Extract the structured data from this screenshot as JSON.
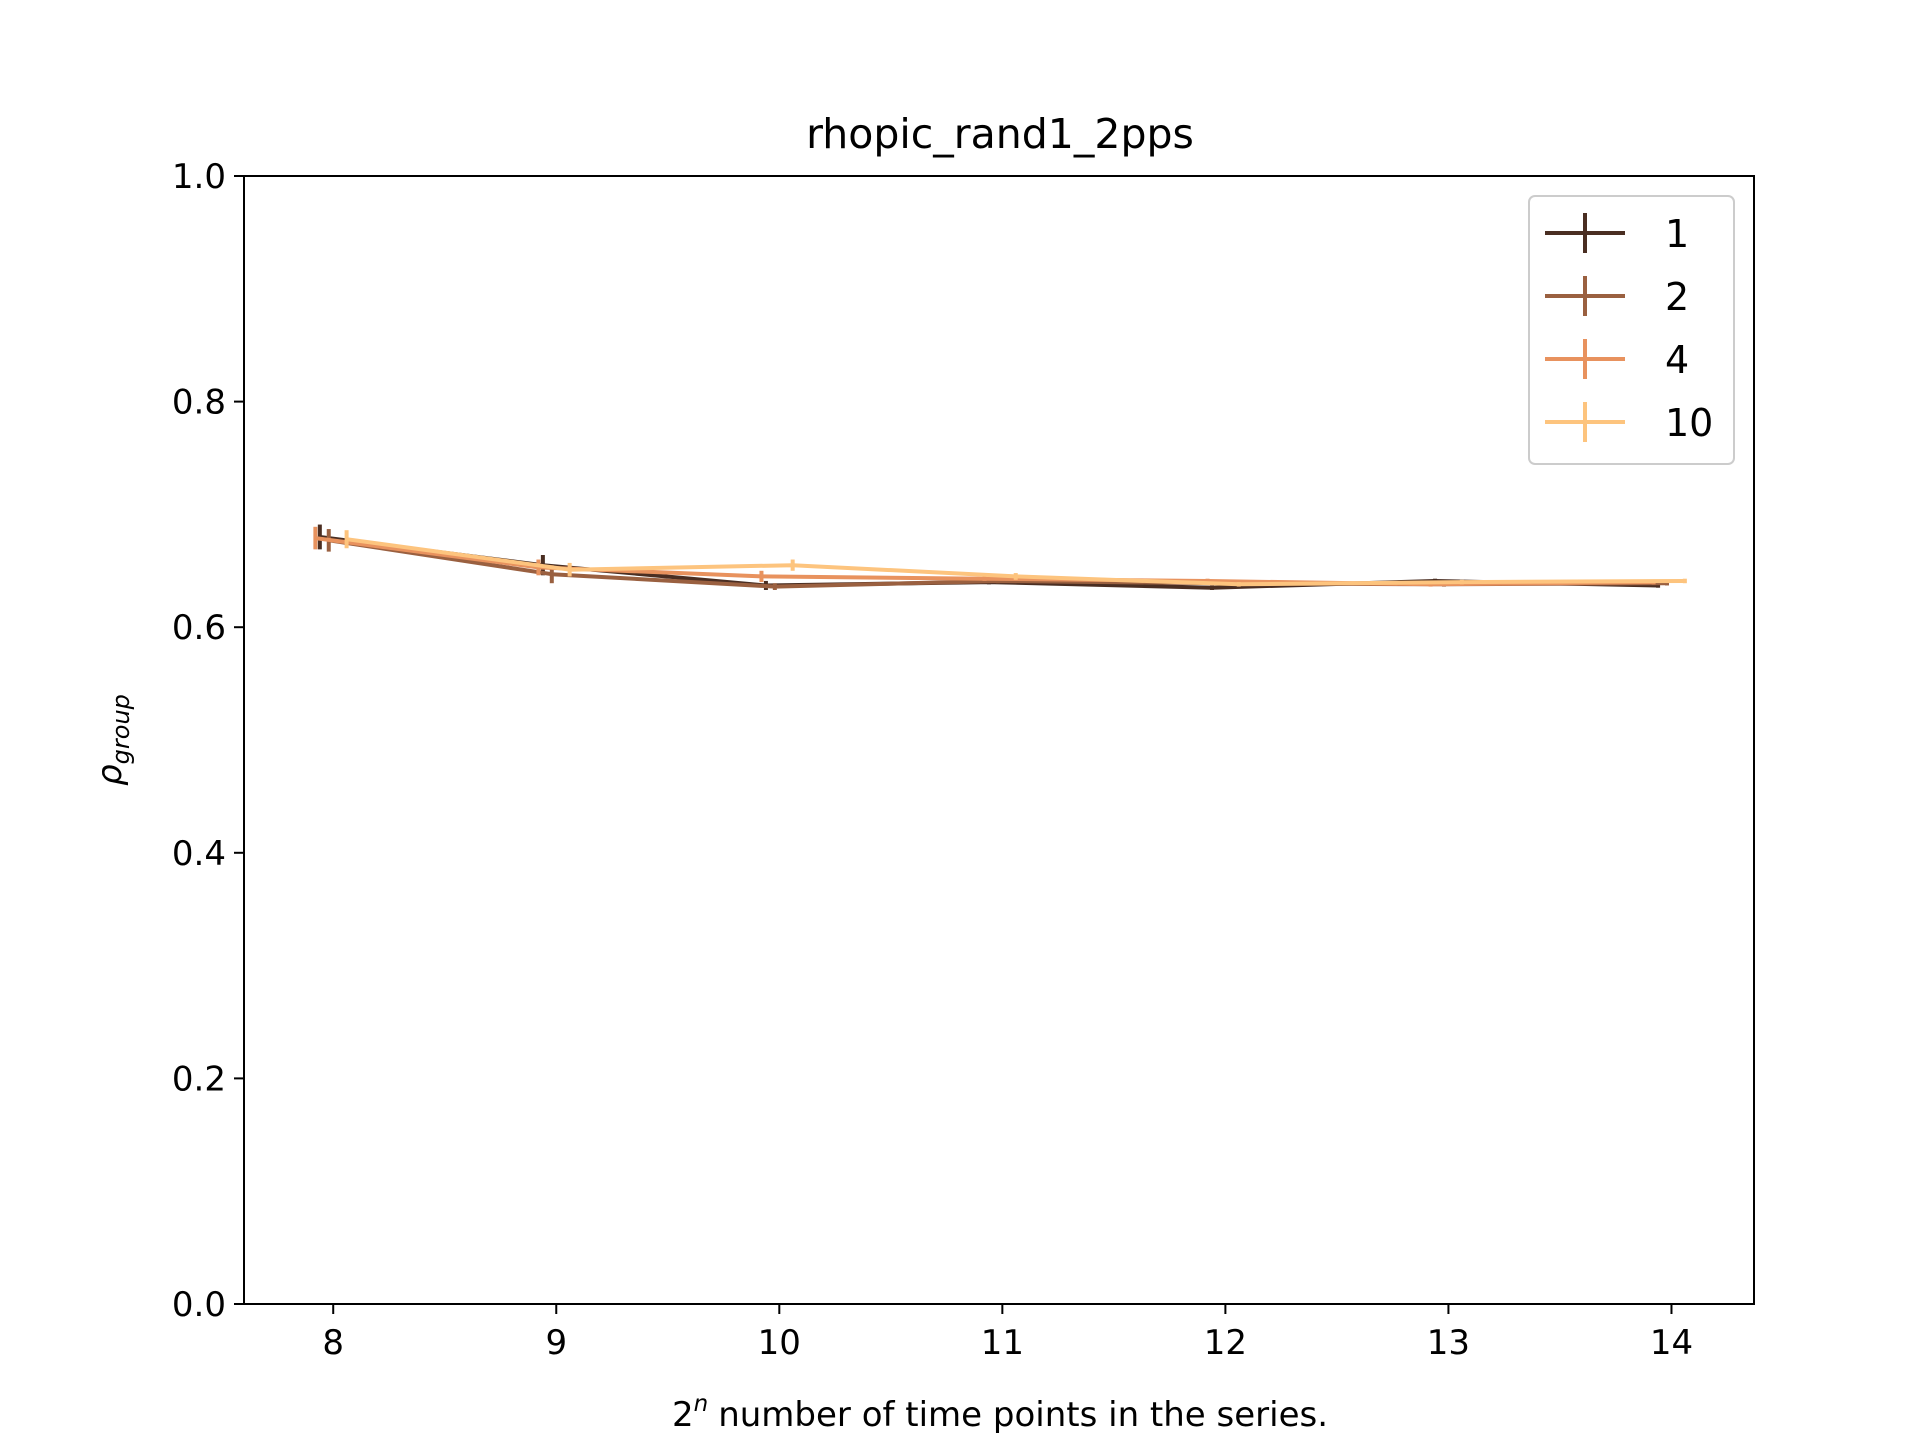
{
  "chart_data": {
    "type": "line",
    "title": "rhopic_rand1_2pps",
    "xlabel": "number of time points in the series.",
    "xlabel_prefix": "2",
    "xlabel_superscript": "n",
    "ylabel_main": "ρ",
    "ylabel_sub": "group",
    "xlim": [
      7.6,
      14.37
    ],
    "ylim": [
      0.0,
      1.0
    ],
    "x_ticks": [
      8,
      9,
      10,
      11,
      12,
      13,
      14
    ],
    "x_tick_labels": [
      "8",
      "9",
      "10",
      "11",
      "12",
      "13",
      "14"
    ],
    "y_ticks": [
      0.0,
      0.2,
      0.4,
      0.6,
      0.8,
      1.0
    ],
    "y_tick_labels": [
      "0.0",
      "0.2",
      "0.4",
      "0.6",
      "0.8",
      "1.0"
    ],
    "grid": false,
    "legend_position": "top-right",
    "series": [
      {
        "name": "1",
        "color": "#4a2e22",
        "x": [
          7.94,
          8.94,
          9.94,
          10.94,
          11.94,
          12.94,
          13.94
        ],
        "y": [
          0.68,
          0.655,
          0.637,
          0.64,
          0.635,
          0.641,
          0.637
        ],
        "yerr": [
          0.011,
          0.009,
          0.004,
          0.002,
          0.002,
          0.002,
          0.002
        ]
      },
      {
        "name": "2",
        "color": "#9a6040",
        "x": [
          7.98,
          8.98,
          9.98,
          10.98,
          11.98,
          12.98,
          13.98
        ],
        "y": [
          0.677,
          0.647,
          0.636,
          0.641,
          0.639,
          0.638,
          0.639
        ],
        "yerr": [
          0.01,
          0.008,
          0.003,
          0.002,
          0.002,
          0.002,
          0.002
        ]
      },
      {
        "name": "4",
        "color": "#e8925e",
        "x": [
          7.92,
          8.92,
          9.92,
          10.92,
          11.92,
          12.92,
          13.92
        ],
        "y": [
          0.679,
          0.653,
          0.645,
          0.643,
          0.641,
          0.638,
          0.64
        ],
        "yerr": [
          0.01,
          0.007,
          0.005,
          0.002,
          0.002,
          0.002,
          0.002
        ]
      },
      {
        "name": "10",
        "color": "#fdc47e",
        "x": [
          8.06,
          9.06,
          10.06,
          11.06,
          12.06,
          13.06,
          14.06
        ],
        "y": [
          0.678,
          0.651,
          0.655,
          0.645,
          0.638,
          0.64,
          0.641
        ],
        "yerr": [
          0.008,
          0.006,
          0.005,
          0.003,
          0.002,
          0.002,
          0.002
        ]
      }
    ]
  }
}
